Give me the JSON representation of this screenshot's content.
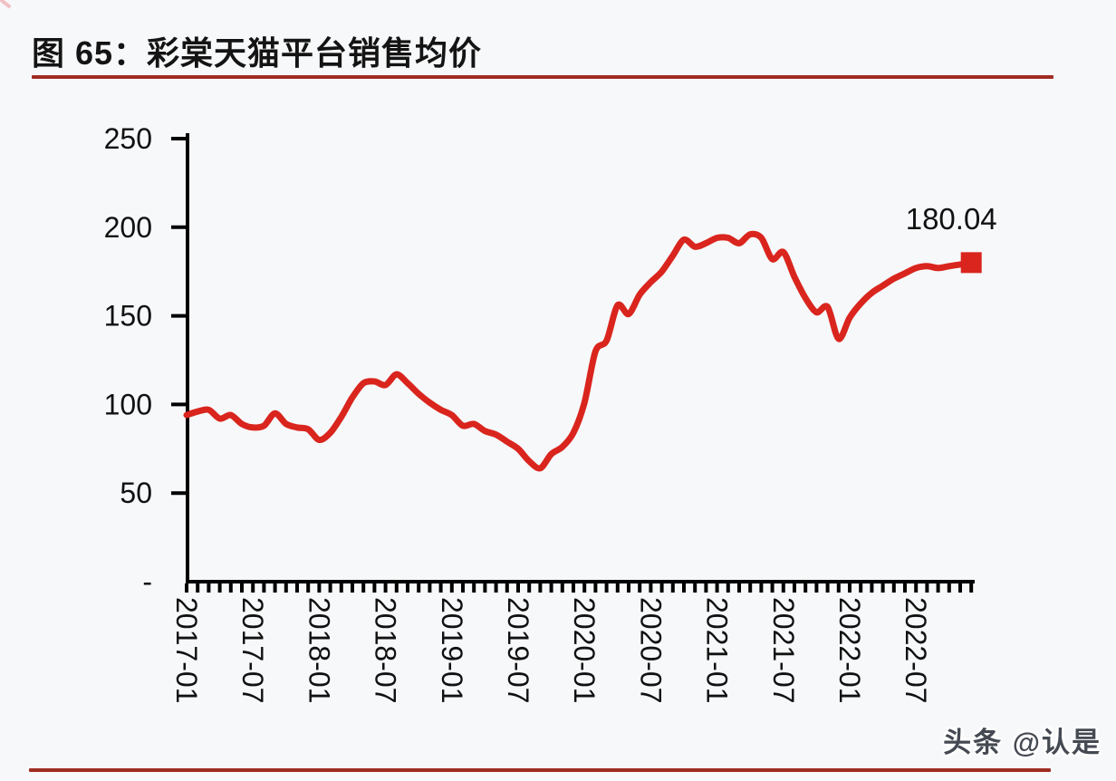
{
  "page": {
    "title": "图 65：彩棠天猫平台销售均价",
    "watermark": "头条 @认是"
  },
  "chart_data": {
    "type": "line",
    "figure_label": "图 65",
    "title": "彩棠天猫平台销售均价",
    "grid": false,
    "legend": "none",
    "ylim": [
      0,
      250
    ],
    "y_tick_labels": [
      "250",
      "200",
      "150",
      "100",
      "50",
      "-"
    ],
    "y_tick_values": [
      250,
      200,
      150,
      100,
      50,
      0
    ],
    "x_tick_labels": [
      "2017-01",
      "2017-07",
      "2018-01",
      "2018-07",
      "2019-01",
      "2019-07",
      "2020-01",
      "2020-07",
      "2021-01",
      "2021-07",
      "2022-01",
      "2022-07"
    ],
    "x_tick_interval_months": 6,
    "series": [
      {
        "name": "彩棠天猫平台销售均价",
        "start_month": "2017-01",
        "end_month": "2022-12",
        "frequency": "monthly",
        "values": [
          94,
          96,
          97,
          92,
          94,
          89,
          87,
          88,
          95,
          89,
          87,
          86,
          80,
          84,
          93,
          104,
          112,
          113,
          111,
          117,
          112,
          106,
          101,
          97,
          94,
          88,
          89,
          85,
          83,
          79,
          75,
          68,
          64,
          72,
          76,
          84,
          101,
          130,
          136,
          156,
          151,
          162,
          169,
          175,
          184,
          193,
          189,
          191,
          194,
          194,
          191,
          196,
          194,
          182,
          186,
          172,
          160,
          152,
          155,
          137,
          149,
          157,
          163,
          167,
          171,
          174,
          177,
          178,
          177,
          178,
          179,
          180.04
        ]
      }
    ],
    "annotation": {
      "text": "180.04",
      "value": 180.04,
      "position": "last-point"
    },
    "colors": {
      "line": "#d9251d",
      "marker": "#d9251d",
      "axis": "#000000",
      "text": "#111111",
      "accent_rule": "#a02c24"
    }
  }
}
